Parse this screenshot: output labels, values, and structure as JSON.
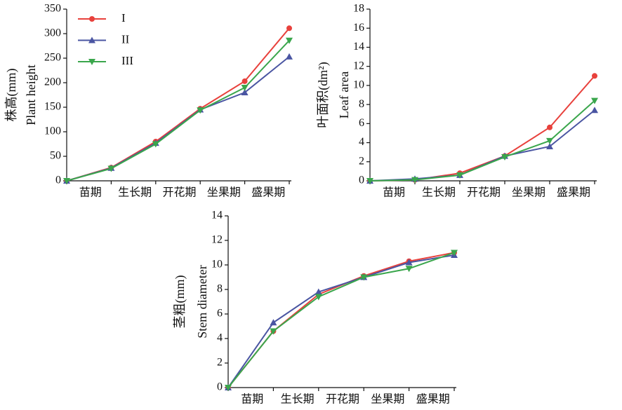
{
  "chart_data": [
    {
      "type": "line",
      "y_label": [
        "株高(mm)",
        "Plant height"
      ],
      "categories": [
        null,
        "苗期",
        "生长期",
        "开花期",
        "坐果期",
        "盛果期"
      ],
      "ylim": [
        0,
        350
      ],
      "yticks": [
        0,
        50,
        100,
        150,
        200,
        250,
        300,
        350
      ],
      "legend": "upper left",
      "series": [
        {
          "name": "I",
          "color": "#e8413c",
          "marker": "circle",
          "values": [
            0,
            27,
            80,
            147,
            203,
            311
          ]
        },
        {
          "name": "II",
          "color": "#4a55a2",
          "marker": "triangle-up",
          "values": [
            0,
            26,
            77,
            145,
            180,
            253
          ]
        },
        {
          "name": "III",
          "color": "#3aa64c",
          "marker": "triangle-down",
          "values": [
            0,
            25,
            75,
            144,
            190,
            286
          ]
        }
      ]
    },
    {
      "type": "line",
      "y_label": [
        "叶面积(dm²)",
        "Leaf area"
      ],
      "categories": [
        null,
        "苗期",
        "生长期",
        "开花期",
        "坐果期",
        "盛果期"
      ],
      "ylim": [
        0,
        18
      ],
      "yticks": [
        0,
        2,
        4,
        6,
        8,
        10,
        12,
        14,
        16,
        18
      ],
      "series": [
        {
          "color": "#e8413c",
          "marker": "circle",
          "values": [
            0,
            0.1,
            0.8,
            2.6,
            5.6,
            11.0
          ]
        },
        {
          "color": "#4a55a2",
          "marker": "triangle-up",
          "values": [
            0,
            0.2,
            0.6,
            2.6,
            3.6,
            7.4
          ]
        },
        {
          "color": "#3aa64c",
          "marker": "triangle-down",
          "values": [
            0,
            0.1,
            0.6,
            2.5,
            4.2,
            8.4
          ]
        }
      ]
    },
    {
      "type": "line",
      "y_label": [
        "茎粗(mm)",
        "Stem diameter"
      ],
      "categories": [
        null,
        "苗期",
        "生长期",
        "开花期",
        "坐果期",
        "盛果期"
      ],
      "ylim": [
        0,
        14
      ],
      "yticks": [
        0,
        2,
        4,
        6,
        8,
        10,
        12,
        14
      ],
      "series": [
        {
          "color": "#e8413c",
          "marker": "circle",
          "values": [
            0,
            4.6,
            7.6,
            9.1,
            10.3,
            11.0
          ]
        },
        {
          "color": "#4a55a2",
          "marker": "triangle-up",
          "values": [
            0,
            5.3,
            7.8,
            9.0,
            10.2,
            10.8
          ]
        },
        {
          "color": "#3aa64c",
          "marker": "triangle-down",
          "values": [
            0,
            4.6,
            7.4,
            9.0,
            9.7,
            11.0
          ]
        }
      ]
    }
  ]
}
